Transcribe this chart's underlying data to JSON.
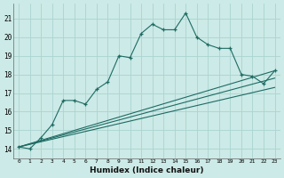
{
  "title": "",
  "xlabel": "Humidex (Indice chaleur)",
  "bg_color": "#cceae7",
  "grid_color": "#aad4d0",
  "line_color": "#1e6b63",
  "xlim": [
    -0.5,
    23.5
  ],
  "ylim": [
    13.5,
    21.8
  ],
  "xticks": [
    0,
    1,
    2,
    3,
    4,
    5,
    6,
    7,
    8,
    9,
    10,
    11,
    12,
    13,
    14,
    15,
    16,
    17,
    18,
    19,
    20,
    21,
    22,
    23
  ],
  "yticks": [
    14,
    15,
    16,
    17,
    18,
    19,
    20,
    21
  ],
  "main_series": {
    "x": [
      0,
      1,
      2,
      3,
      4,
      5,
      6,
      7,
      8,
      9,
      10,
      11,
      12,
      13,
      14,
      15,
      16,
      17,
      18,
      19,
      20,
      21,
      22,
      23
    ],
    "y": [
      14.1,
      14.0,
      14.6,
      15.3,
      16.6,
      16.6,
      16.4,
      17.2,
      17.6,
      19.0,
      18.9,
      20.2,
      20.7,
      20.4,
      20.4,
      21.3,
      20.0,
      19.6,
      19.4,
      19.4,
      18.0,
      17.9,
      17.5,
      18.2
    ]
  },
  "straight_lines": [
    {
      "x": [
        0,
        23
      ],
      "y": [
        14.1,
        18.2
      ]
    },
    {
      "x": [
        0,
        23
      ],
      "y": [
        14.1,
        17.8
      ]
    },
    {
      "x": [
        0,
        23
      ],
      "y": [
        14.1,
        17.3
      ]
    }
  ]
}
